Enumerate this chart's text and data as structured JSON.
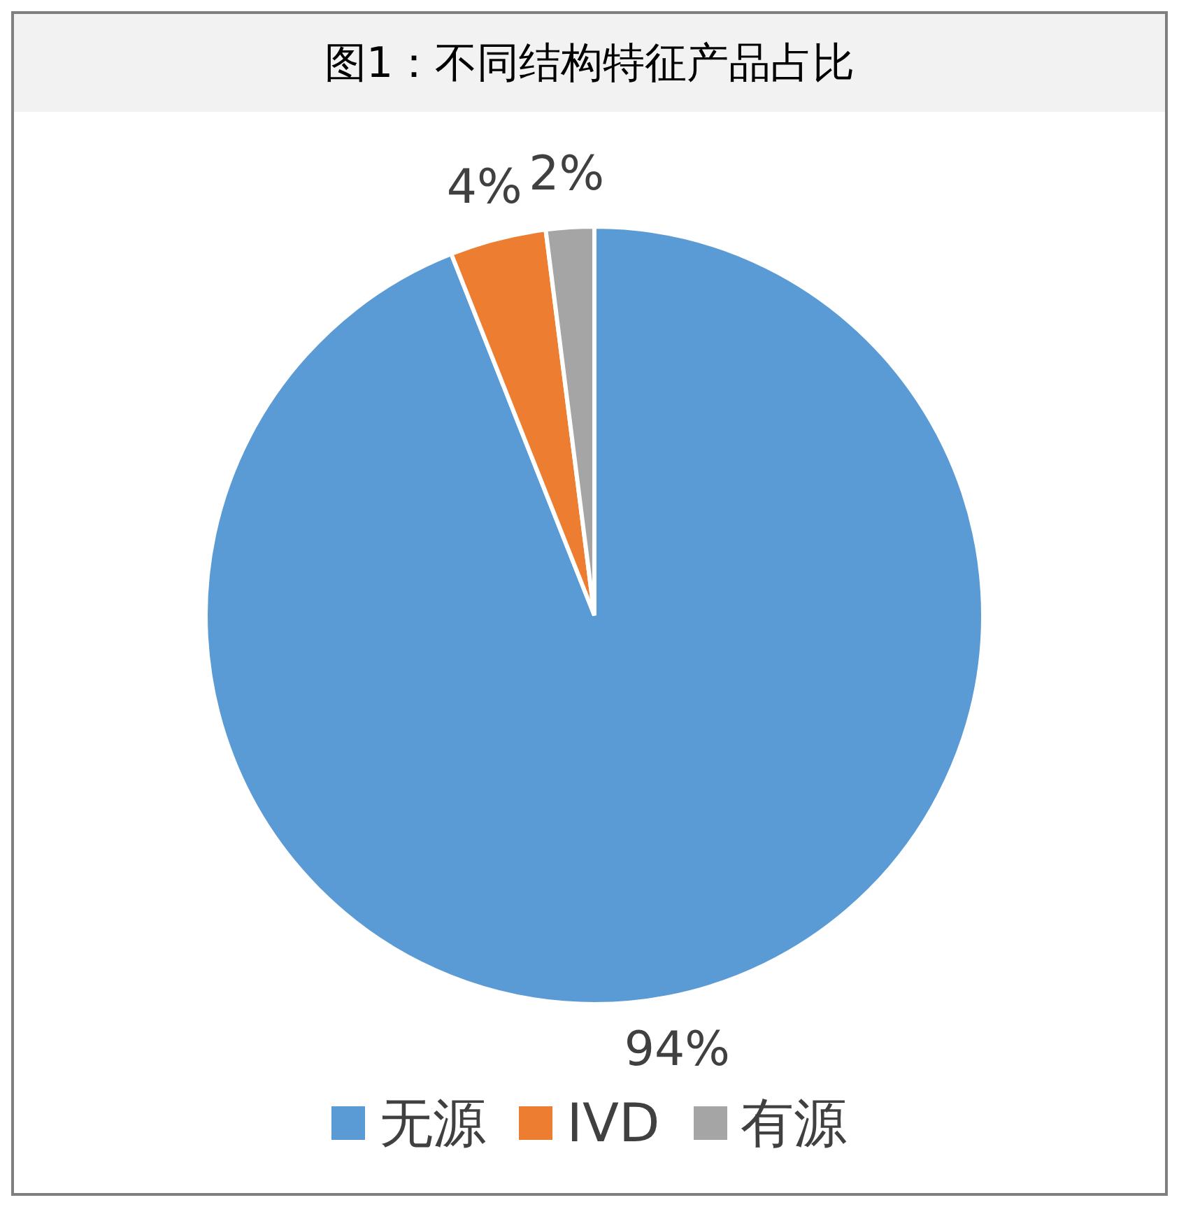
{
  "chart_data": {
    "type": "pie",
    "title": "图1：不同结构特征产品占比",
    "categories": [
      "无源",
      "IVD",
      "有源"
    ],
    "values": [
      94,
      4,
      2
    ],
    "colors": [
      "#5b9bd5",
      "#ed7d31",
      "#a5a5a5"
    ],
    "value_labels": [
      "94%",
      "4%",
      "2%"
    ],
    "legend": "bottom"
  }
}
